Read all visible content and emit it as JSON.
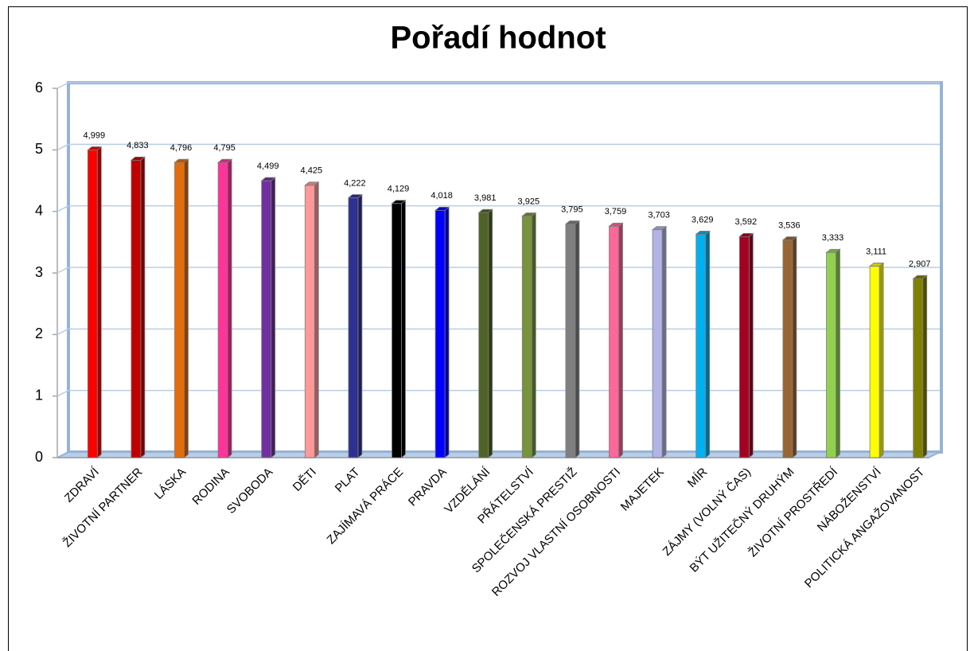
{
  "chart_data": {
    "type": "bar",
    "title": "Pořadí hodnot",
    "categories": [
      "ZDRAVÍ",
      "ŽIVOTNÍ PARTNER",
      "LÁSKA",
      "RODINA",
      "SVOBODA",
      "DĚTI",
      "PLAT",
      "ZAJÍMAVÁ PRÁCE",
      "PRAVDA",
      "VZDĚLÁNÍ",
      "PŘÁTELSTVÍ",
      "SPOLEČENSKÁ PRESTIŽ",
      "ROZVOJ VLASTNÍ OSOBNOSTI",
      "MAJETEK",
      "MÍR",
      "ZÁJMY (VOLNÝ ČAS)",
      "BÝT UŽITEČNÝ DRUHÝM",
      "ŽIVOTNÍ PROSTŘEDÍ",
      "NÁBOŽENSTVÍ",
      "POLITICKÁ ANGAŽOVANOST"
    ],
    "values": [
      4.999,
      4.833,
      4.796,
      4.795,
      4.499,
      4.425,
      4.222,
      4.129,
      4.018,
      3.981,
      3.925,
      3.795,
      3.759,
      3.703,
      3.629,
      3.592,
      3.536,
      3.333,
      3.111,
      2.907
    ],
    "value_labels": [
      "4,999",
      "4,833",
      "4,796",
      "4,795",
      "4,499",
      "4,425",
      "4,222",
      "4,129",
      "4,018",
      "3,981",
      "3,925",
      "3,795",
      "3,759",
      "3,703",
      "3,629",
      "3,592",
      "3,536",
      "3,333",
      "3,111",
      "2,907"
    ],
    "colors": [
      "#ff0000",
      "#c00000",
      "#e46c0a",
      "#ff3399",
      "#7030a0",
      "#ff9999",
      "#2e3192",
      "#000000",
      "#0000ff",
      "#4f6228",
      "#77933c",
      "#7f7f7f",
      "#ff6699",
      "#b3b3e6",
      "#00b0f0",
      "#a50021",
      "#996633",
      "#92d050",
      "#ffff00",
      "#808000"
    ],
    "ylim": [
      0,
      6
    ],
    "yticks": [
      0,
      1,
      2,
      3,
      4,
      5,
      6
    ],
    "grid": true
  }
}
